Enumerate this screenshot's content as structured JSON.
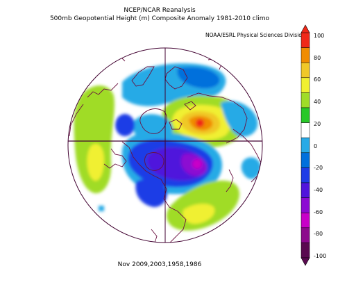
{
  "title": {
    "line1": "NCEP/NCAR Reanalysis",
    "line2": "500mb Geopotential Height (m) Composite Anomaly 1981-2010 climo"
  },
  "credit": "NOAA/ESRL Physical Sciences Division",
  "footer": "Nov 2009,2003,1958,1986",
  "colorbar": {
    "unit": "m",
    "ticks": [
      "100",
      "80",
      "60",
      "40",
      "20",
      "0",
      "-20",
      "-40",
      "-60",
      "-80",
      "-100"
    ],
    "colors": [
      "#f02818",
      "#f08c00",
      "#f0c828",
      "#f0f030",
      "#a0dc28",
      "#28c828",
      "#ffffff",
      "#28aae6",
      "#0070dc",
      "#1e3ce6",
      "#5014dc",
      "#8c0ad2",
      "#c800c8",
      "#8c0a8c",
      "#5a0a50"
    ]
  },
  "map": {
    "projection": "north-polar-stereographic",
    "coastline_color": "#6a1040",
    "grid_color": "#400030"
  }
}
